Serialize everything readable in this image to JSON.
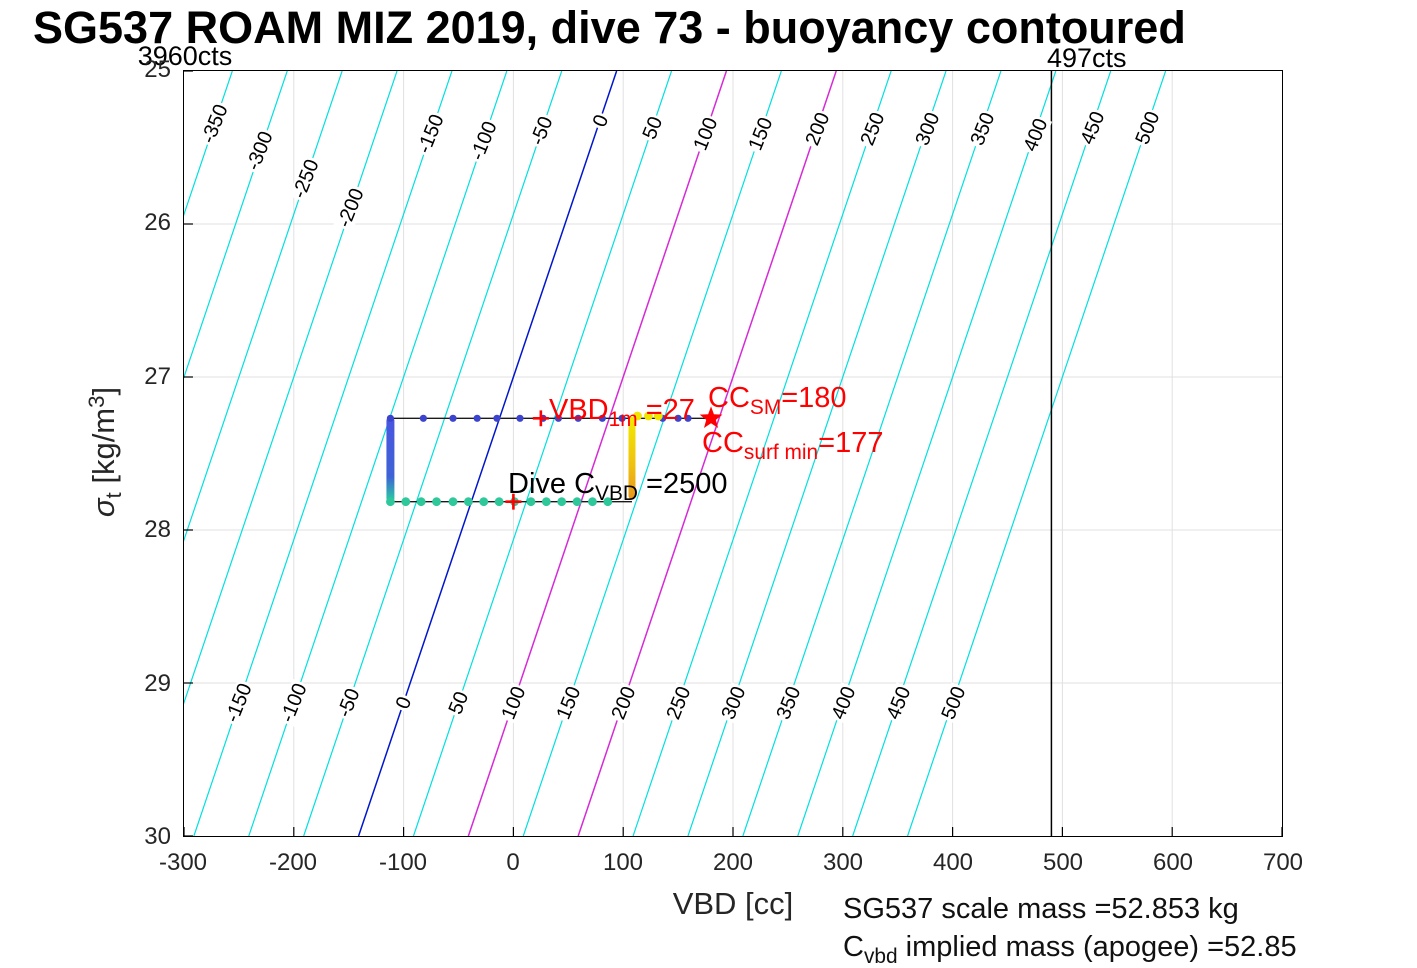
{
  "title": "SG537 ROAM MIZ 2019, dive 73 - buoyancy contoured",
  "corner_labels": {
    "left": "3960cts",
    "right": "497cts"
  },
  "axes": {
    "xlabel": "VBD [cc]",
    "ylabel": {
      "sigma": "σ",
      "sub": "t",
      "pre": " [kg/m",
      "sup": "3",
      "post": "]"
    },
    "x_ticks": [
      -300,
      -200,
      -100,
      0,
      100,
      200,
      300,
      400,
      500,
      600,
      700
    ],
    "y_ticks": [
      25,
      26,
      27,
      28,
      29,
      30
    ]
  },
  "annotations": {
    "vbd1m": {
      "main": "VBD",
      "sub": "1m",
      "value": " =27"
    },
    "cc_sm": {
      "main": "CC",
      "sub": "SM",
      "value": "=180"
    },
    "cc_surf": {
      "main": "CC",
      "sub": "surf min",
      "value": "=177"
    },
    "dive_cvbd": {
      "main": "Dive C",
      "sub": "VBD",
      "value": " =2500"
    }
  },
  "stats": {
    "line1": "SG537 scale mass =52.853 kg",
    "line2_main": "C",
    "line2_sub": "vbd",
    "line2_rest": " implied mass (apogee) =52.85"
  },
  "chart_data": {
    "type": "contour+line",
    "title": "SG537 ROAM MIZ 2019, dive 73 - buoyancy contoured",
    "xlabel": "VBD [cc]",
    "ylabel": "sigma_t [kg/m^3]",
    "xlim": [
      -300,
      700
    ],
    "ylim": [
      25,
      30
    ],
    "y_axis_reversed": true,
    "grid": true,
    "grid_color": "#e0e0e0",
    "contours": {
      "values": [
        -350,
        -300,
        -250,
        -200,
        -150,
        -100,
        -50,
        0,
        50,
        100,
        150,
        200,
        250,
        300,
        350,
        400,
        450,
        500
      ],
      "bottom_labeled_values": [
        -150,
        -100,
        -50,
        0,
        50,
        100,
        150,
        200,
        250,
        300,
        350,
        400,
        450,
        500
      ],
      "vbd_at_sigma25_for_zero": 94,
      "dvbd_dsigma": -47,
      "color_default": "#00e0e0",
      "color_zero": "#0016cc",
      "color_highlight": "#d62ad6",
      "highlight_values": [
        100,
        200
      ]
    },
    "vertical_line_vbd": 490,
    "series": {
      "upper_track": {
        "sigma_t": 27.27,
        "vbd_range": [
          -112,
          180
        ],
        "dot_vbds": [
          -112,
          -82,
          -55,
          -33,
          -15,
          6,
          27,
          41,
          59,
          81,
          99,
          136,
          150,
          159
        ],
        "dot_color": "#3c44ce",
        "line_color": "#1a1a1a"
      },
      "lower_track": {
        "sigma_t": 27.815,
        "vbd_range": [
          -112,
          108
        ],
        "dot_vbds": [
          -112,
          -98,
          -84,
          -70,
          -55,
          -41,
          -27,
          -13,
          1,
          16,
          30,
          44,
          58,
          72,
          86
        ],
        "dot_color": "#2ec89b",
        "line_color": "#1a1a1a"
      },
      "descent_bar": {
        "vbd": -112,
        "sigma_range": [
          27.26,
          27.82
        ],
        "color_top": "#4a55e0",
        "color_bottom": "#2ec89b"
      },
      "apogee_bar": {
        "vbd": 108,
        "sigma_range": [
          27.26,
          27.8
        ],
        "color_top": "#f2ea00",
        "color_bottom": "#e8961c"
      },
      "yellow_dots": {
        "vbds": [
          113,
          123,
          132
        ],
        "sigma_t": 27.255,
        "color": "#f0e400"
      },
      "markers": {
        "plus_upper": {
          "vbd": 25,
          "sigma_t": 27.27,
          "color": "#ff0000"
        },
        "plus_lower": {
          "vbd": 0,
          "sigma_t": 27.815,
          "color": "#ff0000"
        },
        "star": {
          "vbd": 180,
          "sigma_t": 27.27,
          "color": "#ff0000",
          "glyph": "star"
        }
      }
    }
  }
}
